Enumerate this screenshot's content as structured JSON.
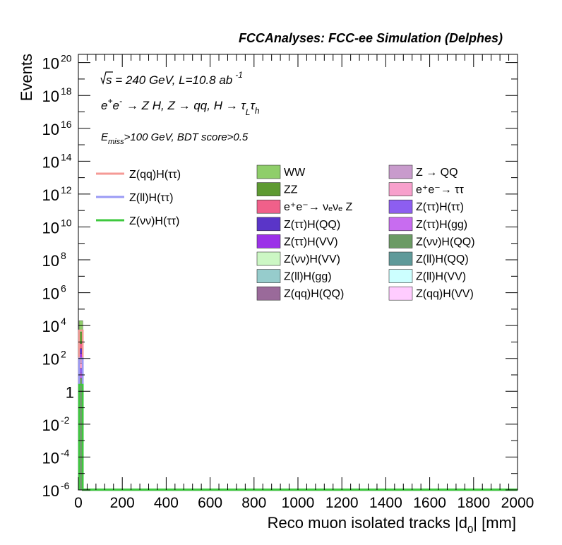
{
  "chart_data": {
    "type": "bar",
    "title": "FCCAnalyses: FCC-ee Simulation (Delphes)",
    "xlabel": "Reco muon isolated tracks |d",
    "xlabel_sub": "0",
    "xlabel_tail": "| [mm]",
    "ylabel": "Events",
    "xlim": [
      0,
      2000
    ],
    "ylim_exp": [
      -6,
      20.5
    ],
    "log_y": true,
    "grid": false,
    "x_ticks": [
      "0",
      "200",
      "400",
      "600",
      "800",
      "1000",
      "1200",
      "1400",
      "1600",
      "1800",
      "2000"
    ],
    "y_ticks": [
      {
        "exp": -6,
        "label": "10",
        "sup": "-6"
      },
      {
        "exp": -4,
        "label": "10",
        "sup": "-4"
      },
      {
        "exp": -2,
        "label": "10",
        "sup": "-2"
      },
      {
        "exp": 0,
        "label": "1",
        "sup": ""
      },
      {
        "exp": 2,
        "label": "10",
        "sup": "2"
      },
      {
        "exp": 4,
        "label": "10",
        "sup": "4"
      },
      {
        "exp": 6,
        "label": "10",
        "sup": "6"
      },
      {
        "exp": 8,
        "label": "10",
        "sup": "8"
      },
      {
        "exp": 10,
        "label": "10",
        "sup": "10"
      },
      {
        "exp": 12,
        "label": "10",
        "sup": "12"
      },
      {
        "exp": 14,
        "label": "10",
        "sup": "14"
      },
      {
        "exp": 16,
        "label": "10",
        "sup": "16"
      },
      {
        "exp": 18,
        "label": "10",
        "sup": "18"
      },
      {
        "exp": 20,
        "label": "10",
        "sup": "20"
      }
    ],
    "annotations": {
      "energy": "s = 240 GeV, L=10.8 ab",
      "energy_sup": "-1",
      "process_a": "e",
      "process_b": "e",
      "process_c": "→ Z H, Z  → qq, H  → τ",
      "process_d": "L",
      "process_e": "τ",
      "process_f": "h",
      "cut_a": "E",
      "cut_b": "miss",
      "cut_c": ">100 GeV, BDT score>0.5"
    },
    "bin": {
      "x_range": [
        0,
        20
      ],
      "unit": "mm"
    },
    "stack": [
      {
        "name": "WW",
        "color": "#8fce6a",
        "top_exp": 4.3
      },
      {
        "name": "ZZ",
        "color": "#5e9a32",
        "top_exp": 3.6
      },
      {
        "name": "e⁺e⁻→ νₑνₑ Z",
        "color": "#f0608a",
        "top_exp": 2.9
      },
      {
        "name": "Z(ττ)H(QQ)",
        "color": "#5a35c8",
        "top_exp": 2.6
      },
      {
        "name": "Z(ττ)H(VV)",
        "color": "#9b32e8",
        "top_exp": 2.3
      },
      {
        "name": "Z → QQ",
        "color": "#c89bcc",
        "top_exp": 2.0
      },
      {
        "name": "e⁺e⁻→ ττ",
        "color": "#f7a0cc",
        "top_exp": 1.7
      },
      {
        "name": "Z(ττ)H(ττ)",
        "color": "#8d5ef0",
        "top_exp": 1.4
      },
      {
        "name": "Z(ττ)H(gg)",
        "color": "#c86cf0",
        "top_exp": 1.1
      },
      {
        "name": "Z(νν)H(QQ)",
        "color": "#6b9a64",
        "top_exp": 0.8
      }
    ],
    "signal_lines": [
      {
        "name": "Z(qq)H(ττ)",
        "color": "#f59a96",
        "top_exp": 3.7
      },
      {
        "name": "Z(ll)H(ττ)",
        "color": "#9a9af5",
        "top_exp": 2.0
      },
      {
        "name": "Z(νν)H(ττ)",
        "color": "#3ec83e",
        "top_exp": 0.4
      }
    ],
    "legend_signal_title": "",
    "legend_bkg": [
      [
        "WW",
        "#8fce6a"
      ],
      [
        "Z → QQ",
        "#c89bcc"
      ],
      [
        "ZZ",
        "#5e9a32"
      ],
      [
        "e⁺e⁻→ ττ",
        "#f7a0cc"
      ],
      [
        "e⁺e⁻→ νₑνₑ Z",
        "#f0608a"
      ],
      [
        "Z(ττ)H(ττ)",
        "#8d5ef0"
      ],
      [
        "Z(ττ)H(QQ)",
        "#5a35c8"
      ],
      [
        "Z(ττ)H(gg)",
        "#c86cf0"
      ],
      [
        "Z(ττ)H(VV)",
        "#9b32e8"
      ],
      [
        "Z(νν)H(QQ)",
        "#6b9a64"
      ],
      [
        "Z(νν)H(VV)",
        "#ccf7c4"
      ],
      [
        "Z(ll)H(QQ)",
        "#5f9a9a"
      ],
      [
        "Z(ll)H(gg)",
        "#96cccc"
      ],
      [
        "Z(ll)H(VV)",
        "#ccffff"
      ],
      [
        "Z(qq)H(QQ)",
        "#9a6a9a"
      ],
      [
        "Z(qq)H(VV)",
        "#ffccff"
      ]
    ],
    "legend_placement": "top-center, two columns; signal legend top-left"
  }
}
